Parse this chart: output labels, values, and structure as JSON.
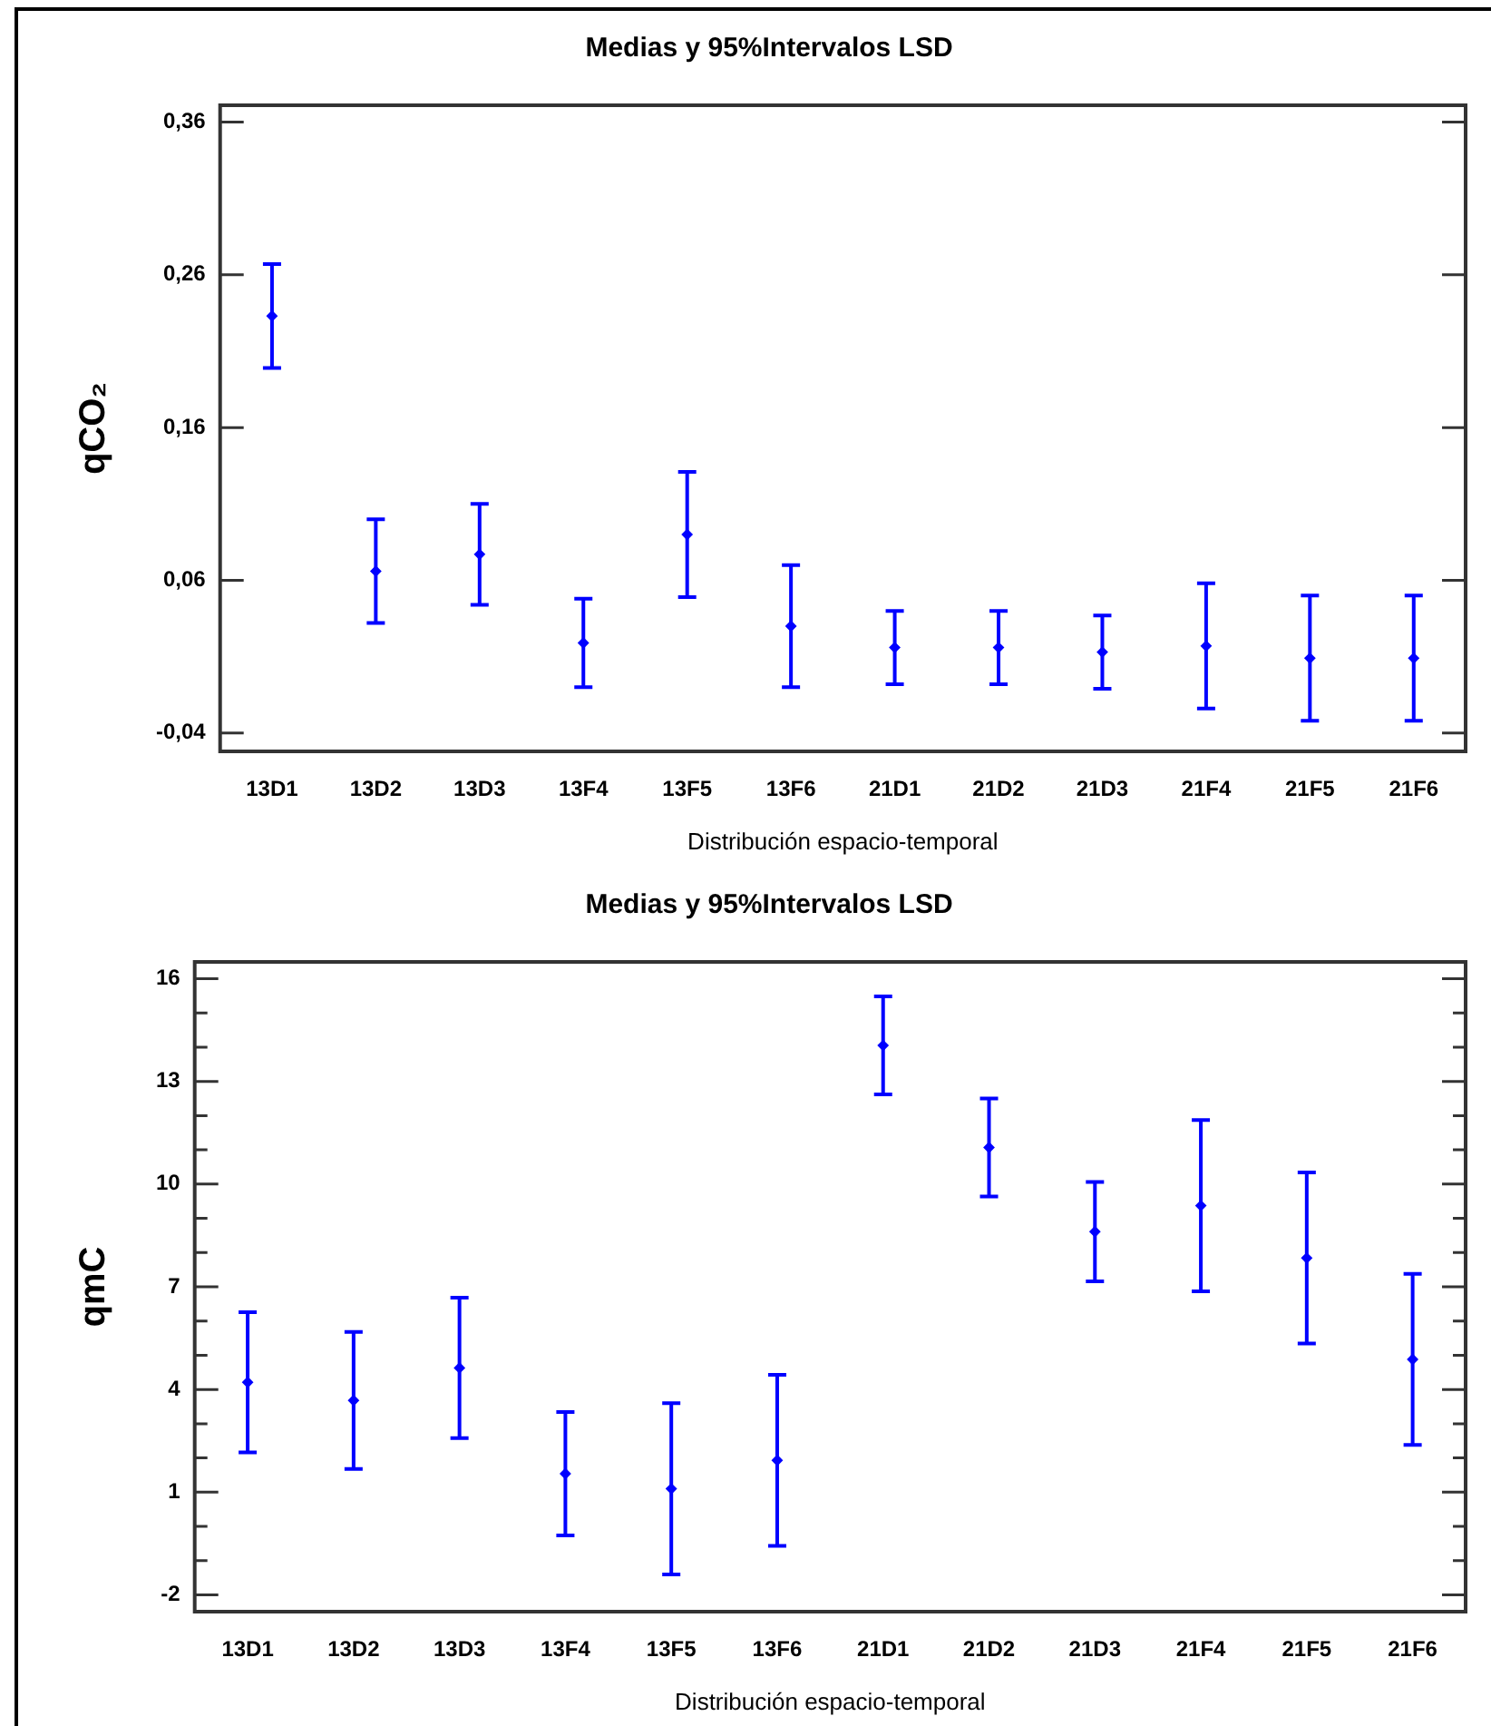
{
  "chart_data": [
    {
      "type": "scatter",
      "title": "Medias y 95%Intervalos LSD",
      "xlabel": "Distribución espacio-temporal",
      "ylabel": "qCO₂",
      "categories": [
        "13D1",
        "13D2",
        "13D3",
        "13F4",
        "13F5",
        "13F6",
        "21D1",
        "21D2",
        "21D3",
        "21F4",
        "21F5",
        "21F6"
      ],
      "series": [
        {
          "color": "#0000ff",
          "values": [
            0.233,
            0.066,
            0.077,
            0.019,
            0.09,
            0.03,
            0.016,
            0.016,
            0.013,
            0.017,
            0.009,
            0.009
          ],
          "errors": [
            0.034,
            0.034,
            0.033,
            0.029,
            0.041,
            0.04,
            0.024,
            0.024,
            0.024,
            0.041,
            0.041,
            0.041
          ]
        }
      ],
      "ylim": [
        -0.052,
        0.371
      ],
      "yticks": [
        {
          "value": -0.04,
          "label": "-0,04"
        },
        {
          "value": 0.06,
          "label": "0,06"
        },
        {
          "value": 0.16,
          "label": "0,16"
        },
        {
          "value": 0.26,
          "label": "0,26"
        },
        {
          "value": 0.36,
          "label": "0,36"
        }
      ],
      "grid": false,
      "legend": false,
      "marker": "diamond"
    },
    {
      "type": "scatter",
      "title": "Medias y 95%Intervalos LSD",
      "xlabel": "Distribución espacio-temporal",
      "ylabel": "qmC",
      "categories": [
        "13D1",
        "13D2",
        "13D3",
        "13F4",
        "13F5",
        "13F6",
        "21D1",
        "21D2",
        "21D3",
        "21F4",
        "21F5",
        "21F6"
      ],
      "series": [
        {
          "color": "#0000ff",
          "values": [
            4.21,
            3.68,
            4.63,
            1.54,
            1.1,
            1.93,
            14.05,
            11.07,
            8.61,
            9.37,
            7.84,
            4.88
          ],
          "errors": [
            2.05,
            2.0,
            2.05,
            1.8,
            2.5,
            2.5,
            1.43,
            1.43,
            1.45,
            2.5,
            2.5,
            2.5
          ]
        }
      ],
      "ylim": [
        -2.49,
        16.49
      ],
      "yticks": [
        -2,
        {
          "value": -1,
          "label": null
        },
        {
          "value": 0,
          "label": null
        },
        1,
        {
          "value": 2,
          "label": null
        },
        {
          "value": 3,
          "label": null
        },
        4,
        {
          "value": 5,
          "label": null
        },
        {
          "value": 6,
          "label": null
        },
        7,
        {
          "value": 8,
          "label": null
        },
        {
          "value": 9,
          "label": null
        },
        10,
        {
          "value": 11,
          "label": null
        },
        {
          "value": 12,
          "label": null
        },
        13,
        {
          "value": 14,
          "label": null
        },
        {
          "value": 15,
          "label": null
        },
        16
      ],
      "grid": false,
      "legend": false,
      "marker": "diamond"
    }
  ]
}
